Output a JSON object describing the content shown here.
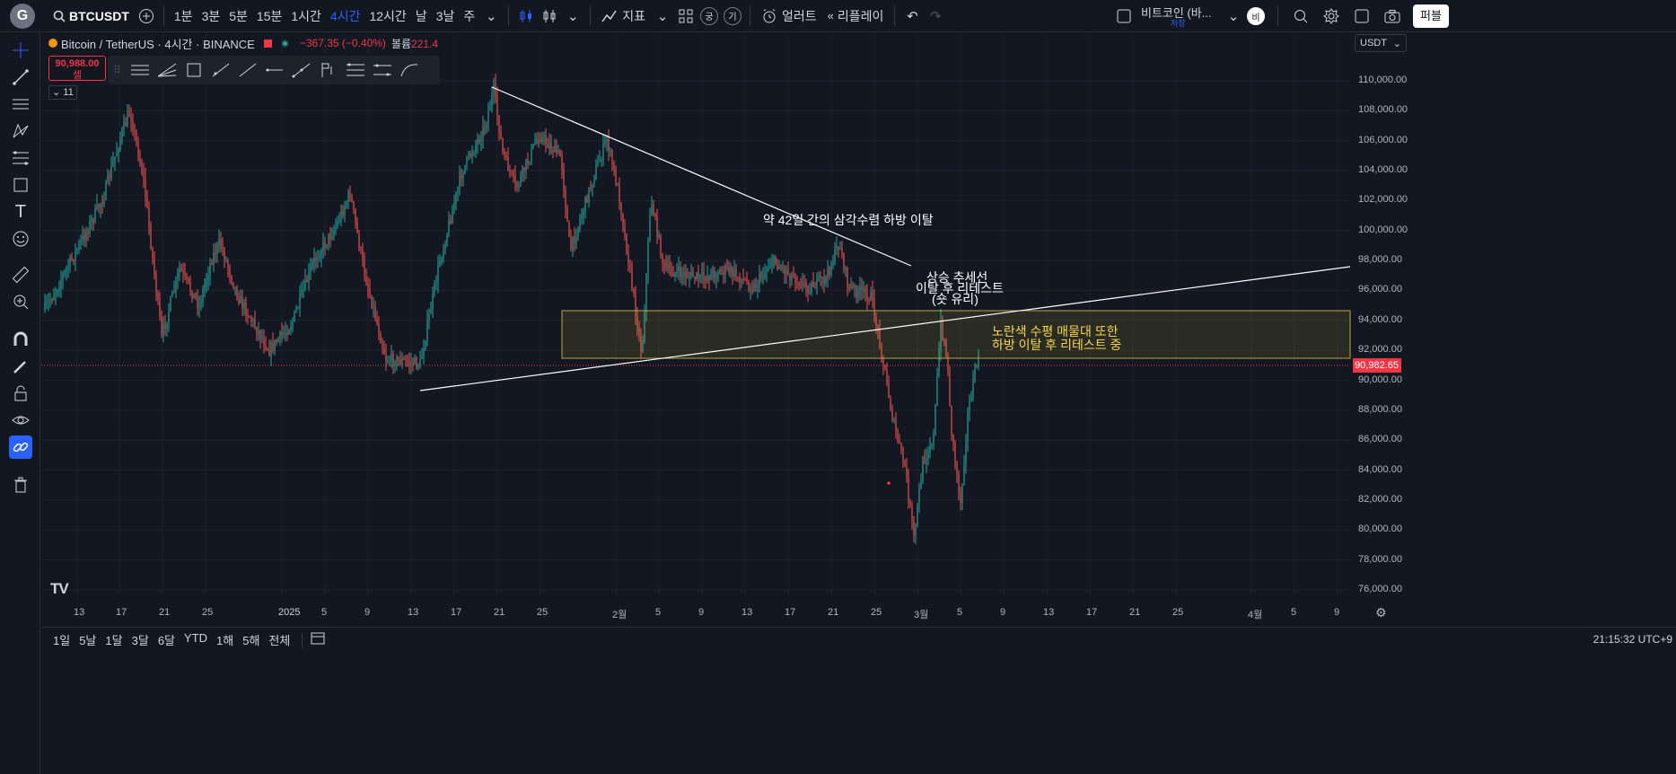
{
  "topbar": {
    "logo": "G",
    "symbol": "BTCUSDT",
    "intervals": [
      "1분",
      "3분",
      "5분",
      "15분",
      "1시간",
      "4시간",
      "12시간",
      "날",
      "3날",
      "주"
    ],
    "active_interval": "4시간",
    "indicators_label": "지표",
    "badge1": "궁",
    "badge2": "기",
    "alert_label": "얼러트",
    "replay_label": "리플레이",
    "layout_name": "비트코인 (바...",
    "layout_sub": "저장",
    "avatar": "비",
    "publish": "퍼블"
  },
  "legend": {
    "title": "Bitcoin / TetherUS · 4시간 · BINANCE",
    "change": "−367.35 (−0.40%)",
    "volume_label": "볼륨",
    "volume_value": "221.4",
    "sell_price": "90,988.00",
    "sell_label": "셀",
    "collapse_count": "11"
  },
  "price_axis": {
    "currency": "USDT",
    "labels": [
      "110,000.00",
      "108,000.00",
      "106,000.00",
      "104,000.00",
      "102,000.00",
      "100,000.00",
      "98,000.00",
      "96,000.00",
      "94,000.00",
      "92,000.00",
      "90,000.00",
      "88,000.00",
      "86,000.00",
      "84,000.00",
      "82,000.00",
      "80,000.00",
      "78,000.00",
      "76,000.00"
    ],
    "current_price": "90,982.65"
  },
  "time_axis": [
    "13",
    "17",
    "21",
    "25",
    "2025",
    "5",
    "9",
    "13",
    "17",
    "21",
    "25",
    "2월",
    "5",
    "9",
    "13",
    "17",
    "21",
    "25",
    "3월",
    "5",
    "9",
    "13",
    "17",
    "21",
    "25",
    "4월",
    "5",
    "9"
  ],
  "annotations": {
    "triangle": "약 42일 간의 삼각수렴 하방 이탈",
    "trend_line1": "상승 추세선",
    "trend_line2": "이탈 후 리테스트",
    "trend_line3": "(숏 유리)",
    "zone_line1": "노란색 수평 매물대 또한",
    "zone_line2": "하방 이탈 후 리테스트 중"
  },
  "bottombar": {
    "ranges": [
      "1일",
      "5날",
      "1달",
      "3달",
      "6달",
      "YTD",
      "1해",
      "5해",
      "전체"
    ],
    "clock": "21:15:32 UTC+9"
  },
  "colors": {
    "up": "#26a69a",
    "down": "#ef5350",
    "accent": "#2962ff",
    "zone": "#c9b838"
  }
}
